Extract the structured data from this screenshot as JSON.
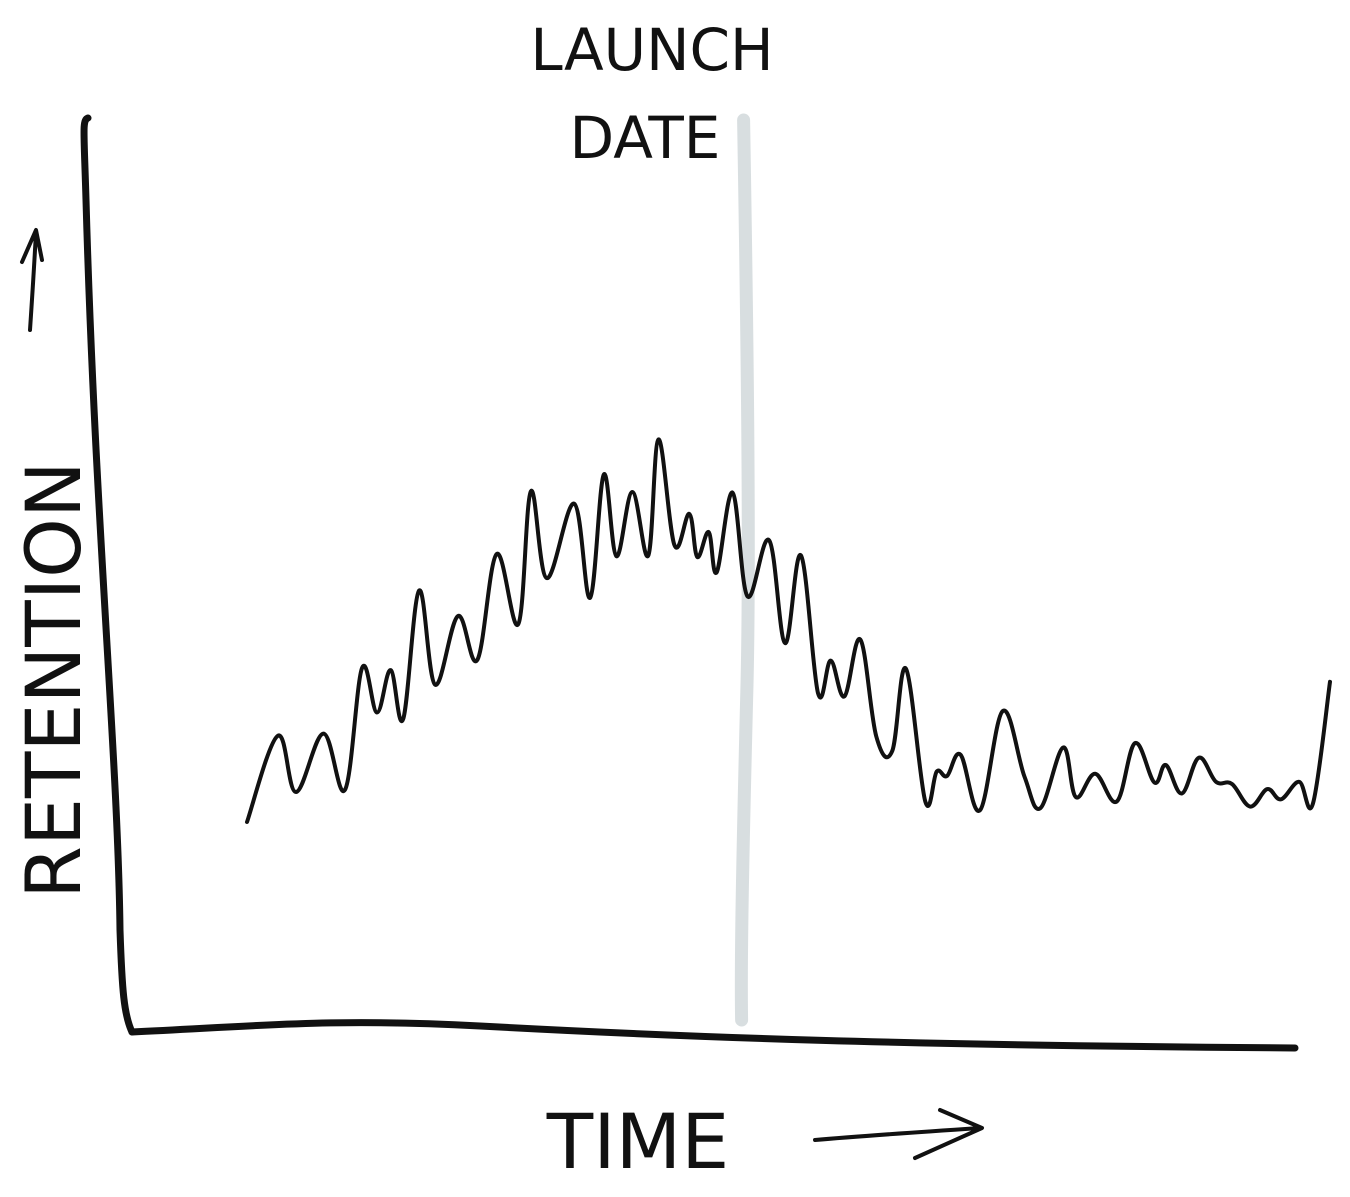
{
  "chart_data": {
    "type": "line",
    "title": "",
    "xlabel": "TIME",
    "ylabel": "RETENTION",
    "grid": false,
    "legend": "none",
    "annotations": [
      {
        "label_lines": [
          "LAUNCH",
          "DATE"
        ],
        "x": 49,
        "kind": "vertical-marker",
        "color": "#d4dadd"
      }
    ],
    "xlim": [
      0,
      100
    ],
    "ylim": [
      0,
      100
    ],
    "series": [
      {
        "color": "#111111",
        "x": [
          5,
          7.7,
          9.3,
          11.7,
          13.6,
          15.1,
          16.4,
          17.6,
          18.7,
          20.1,
          21.5,
          23.5,
          25.2,
          26.9,
          28.8,
          29.9,
          31.3,
          33.7,
          35.1,
          36.3,
          37.4,
          38.8,
          40.2,
          41.1,
          42.5,
          43.8,
          44.5,
          45.5,
          46.2,
          47.6,
          48.9,
          50.8,
          52.2,
          53.6,
          55.1,
          56.2,
          57.4,
          58.8,
          60.2,
          61.6,
          62.8,
          64.5,
          65.5,
          66.4,
          67.6,
          69.3,
          71.3,
          73.2,
          74.6,
          76.6,
          77.7,
          79.4,
          81.3,
          82.9,
          84.6,
          85.6,
          87.0,
          88.5,
          90.0,
          91.4,
          93.0,
          94.5,
          95.7,
          97.3,
          98.5,
          100
        ],
        "y": [
          28.5,
          40.3,
          32.6,
          40.6,
          32.9,
          49.6,
          43.5,
          49.3,
          42.6,
          60.2,
          47.3,
          56.7,
          50.7,
          65.2,
          55.6,
          73.8,
          61.9,
          72.1,
          59.2,
          76.1,
          64.9,
          73.7,
          65.0,
          80.9,
          66.4,
          70.7,
          64.8,
          68.2,
          62.7,
          73.6,
          59.4,
          67.1,
          53.0,
          65.0,
          46.1,
          50.6,
          45.7,
          53.5,
          40.2,
          38.2,
          49.5,
          31.3,
          35.4,
          34.8,
          37.7,
          30.1,
          43.7,
          34.7,
          30.4,
          38.7,
          31.9,
          35.1,
          31.3,
          39.3,
          33.9,
          36.3,
          32.4,
          37.3,
          34.0,
          33.7,
          30.6,
          33.0,
          31.6,
          34.0,
          31.0,
          47.7
        ]
      }
    ]
  },
  "colors": {
    "ink": "#111111",
    "marker": "#d4dadd",
    "background": "#ffffff"
  }
}
